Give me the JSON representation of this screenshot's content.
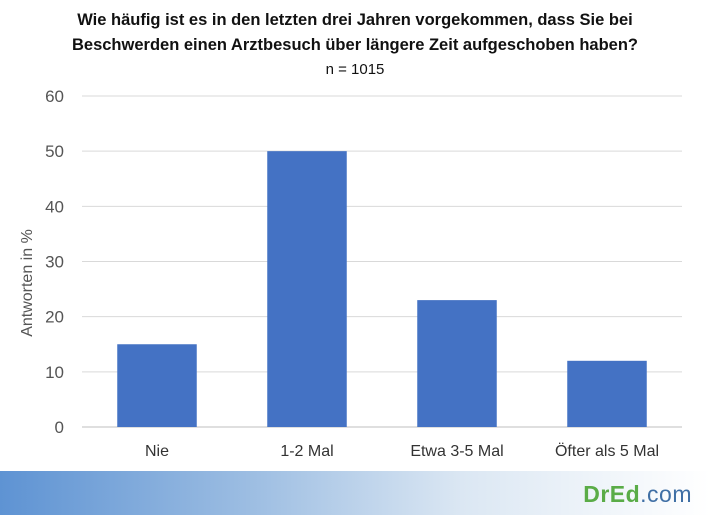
{
  "chart_data": {
    "type": "bar",
    "title_line1": "Wie häufig ist es in den letzten drei Jahren vorgekommen, dass Sie bei",
    "title_line2": "Beschwerden einen Arztbesuch über längere Zeit aufgeschoben haben?",
    "subtitle": "n = 1015",
    "ylabel": "Antworten in %",
    "categories": [
      "Nie",
      "1-2 Mal",
      "Etwa 3-5 Mal",
      "Öfter als 5 Mal"
    ],
    "values": [
      15,
      50,
      23,
      12
    ],
    "ylim": [
      0,
      60
    ],
    "yticks": [
      0,
      10,
      20,
      30,
      40,
      50,
      60
    ],
    "grid": true,
    "bar_color": "#4472c4"
  },
  "footer": {
    "logo_brand": "DrEd",
    "logo_tld": ".com",
    "brand_color": "#5aac47"
  }
}
